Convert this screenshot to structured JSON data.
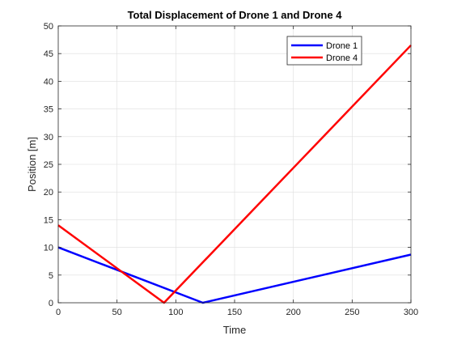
{
  "chart_data": {
    "type": "line",
    "title": "Total Displacement of Drone 1 and Drone 4",
    "xlabel": "Time",
    "ylabel": "Position [m]",
    "xlim": [
      0,
      300
    ],
    "ylim": [
      0,
      50
    ],
    "xticks": [
      0,
      50,
      100,
      150,
      200,
      250,
      300
    ],
    "yticks": [
      0,
      5,
      10,
      15,
      20,
      25,
      30,
      35,
      40,
      45,
      50
    ],
    "grid": true,
    "legend_position": "top-right",
    "series": [
      {
        "name": "Drone 1",
        "color": "#0000ff",
        "x": [
          0,
          123,
          300
        ],
        "y": [
          10,
          0,
          8.7
        ]
      },
      {
        "name": "Drone 4",
        "color": "#ff0000",
        "x": [
          0,
          90,
          300
        ],
        "y": [
          14,
          0,
          46.5
        ]
      }
    ]
  }
}
